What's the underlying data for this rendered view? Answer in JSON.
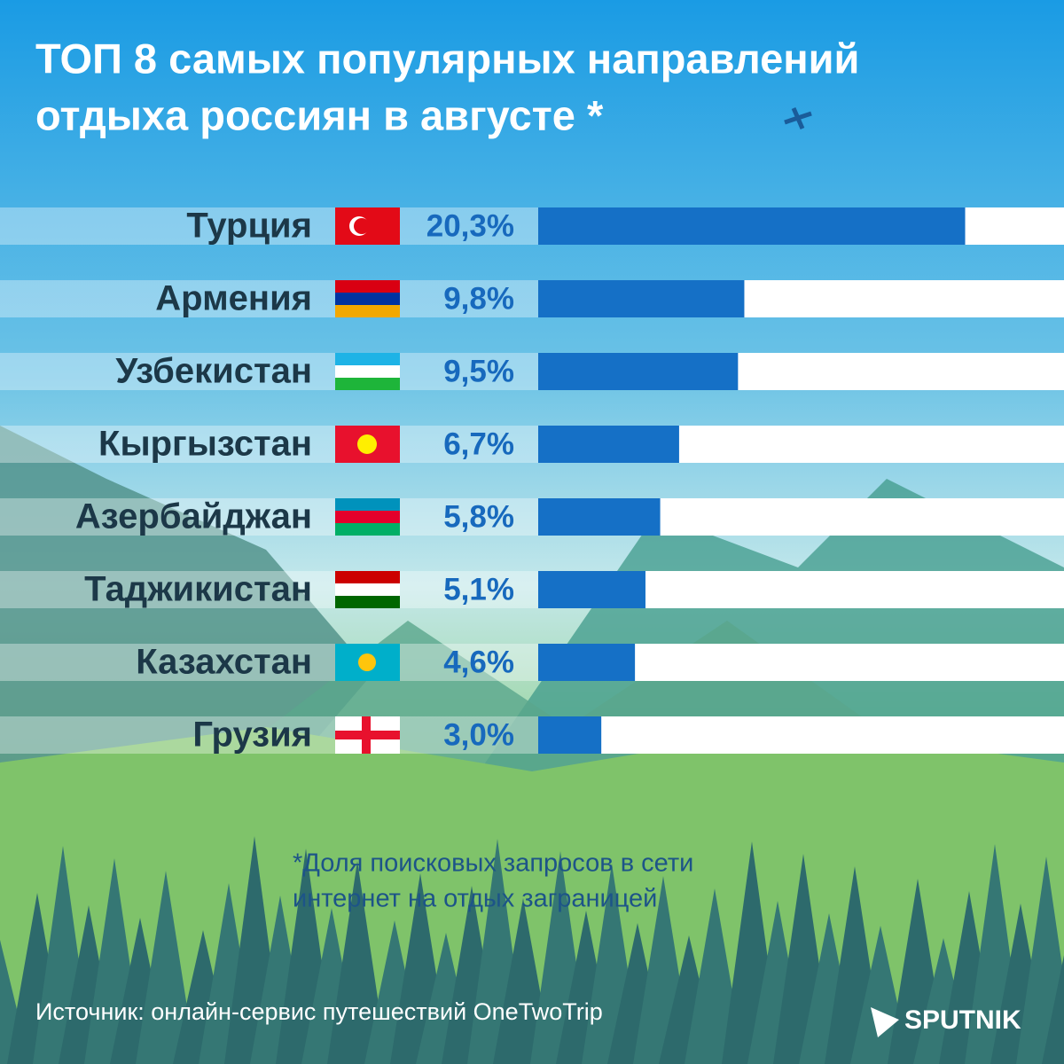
{
  "chart_data": {
    "type": "bar",
    "title": [
      "ТОП 8 самых популярных направлений",
      "отдыха россиян в августе *"
    ],
    "categories": [
      "Турция",
      "Армения",
      "Узбекистан",
      "Кыргызстан",
      "Азербайджан",
      "Таджикистан",
      "Казахстан",
      "Грузия"
    ],
    "values": [
      20.3,
      9.8,
      9.5,
      6.7,
      5.8,
      5.1,
      4.6,
      3.0
    ],
    "value_labels": [
      "20,3%",
      "9,8%",
      "9,5%",
      "6,7%",
      "5,8%",
      "5,1%",
      "4,6%",
      "3,0%"
    ],
    "color": "#1570c6",
    "xlim": [
      0,
      25
    ],
    "note": [
      "*Доля поисковых запросов в сети",
      "интернет на отдых заграницей"
    ],
    "source": "Источник: онлайн-сервис путешествий OneTwoTrip",
    "logo": "SPUTNIK"
  }
}
